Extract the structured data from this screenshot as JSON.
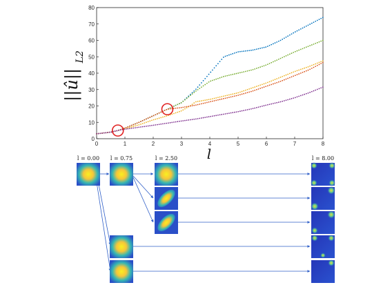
{
  "chart_data": {
    "type": "scatter",
    "xlabel": "l",
    "ylabel": "||û||",
    "ylabel_sub": "L2",
    "xlim": [
      0,
      8
    ],
    "ylim": [
      0,
      80
    ],
    "xticks": [
      0,
      1,
      2,
      3,
      4,
      5,
      6,
      7,
      8
    ],
    "yticks": [
      0,
      10,
      20,
      30,
      40,
      50,
      60,
      70,
      80
    ],
    "grid": false,
    "series": [
      {
        "color": "#0072BD",
        "points": [
          [
            0,
            3
          ],
          [
            0.5,
            4
          ],
          [
            0.75,
            5
          ],
          [
            1,
            6.5
          ],
          [
            1.5,
            10
          ],
          [
            2,
            14
          ],
          [
            2.5,
            18
          ],
          [
            3,
            22
          ],
          [
            3.5,
            30
          ],
          [
            4,
            40
          ],
          [
            4.5,
            50
          ],
          [
            5,
            53
          ],
          [
            5.5,
            54
          ],
          [
            6,
            56
          ],
          [
            6.5,
            60
          ],
          [
            7,
            65
          ],
          [
            7.5,
            69.5
          ],
          [
            8,
            74
          ]
        ]
      },
      {
        "color": "#77AC30",
        "points": [
          [
            0,
            3
          ],
          [
            0.5,
            4
          ],
          [
            0.75,
            5
          ],
          [
            1,
            6.5
          ],
          [
            1.5,
            10
          ],
          [
            2,
            14
          ],
          [
            2.5,
            18
          ],
          [
            3,
            22
          ],
          [
            3.5,
            29
          ],
          [
            4,
            35
          ],
          [
            4.5,
            38
          ],
          [
            5,
            40
          ],
          [
            5.5,
            42
          ],
          [
            6,
            45
          ],
          [
            6.5,
            49
          ],
          [
            7,
            53
          ],
          [
            7.5,
            56.5
          ],
          [
            8,
            60
          ]
        ]
      },
      {
        "color": "#EDB120",
        "points": [
          [
            0,
            3
          ],
          [
            0.5,
            4
          ],
          [
            0.75,
            5
          ],
          [
            1,
            6
          ],
          [
            1.5,
            8.5
          ],
          [
            2,
            11.5
          ],
          [
            2.5,
            14
          ],
          [
            3,
            17
          ],
          [
            3.3,
            20
          ],
          [
            3.5,
            22.5
          ],
          [
            4,
            24
          ],
          [
            4.5,
            26
          ],
          [
            5,
            28
          ],
          [
            5.5,
            31
          ],
          [
            6,
            34
          ],
          [
            6.5,
            37.5
          ],
          [
            7,
            41
          ],
          [
            7.5,
            44
          ],
          [
            8,
            47.5
          ]
        ]
      },
      {
        "color": "#D95319",
        "points": [
          [
            0,
            3
          ],
          [
            0.5,
            4
          ],
          [
            0.75,
            5
          ],
          [
            1,
            6.5
          ],
          [
            1.5,
            10
          ],
          [
            2,
            14
          ],
          [
            2.5,
            18
          ],
          [
            3,
            19
          ],
          [
            3.5,
            20.5
          ],
          [
            4,
            22.5
          ],
          [
            4.5,
            24.5
          ],
          [
            5,
            26.5
          ],
          [
            5.5,
            29
          ],
          [
            6,
            32
          ],
          [
            6.5,
            35
          ],
          [
            7,
            38.5
          ],
          [
            7.5,
            42
          ],
          [
            8,
            46.5
          ]
        ]
      },
      {
        "color": "#7E2F8E",
        "points": [
          [
            0,
            3
          ],
          [
            0.5,
            4
          ],
          [
            0.75,
            5
          ],
          [
            1,
            5.8
          ],
          [
            1.5,
            7
          ],
          [
            2,
            8.2
          ],
          [
            2.5,
            9.5
          ],
          [
            3,
            10.8
          ],
          [
            3.5,
            12
          ],
          [
            4,
            13.5
          ],
          [
            4.5,
            15
          ],
          [
            5,
            16.5
          ],
          [
            5.5,
            18.3
          ],
          [
            6,
            20.5
          ],
          [
            6.5,
            22.5
          ],
          [
            7,
            25
          ],
          [
            7.5,
            28
          ],
          [
            8,
            31.5
          ]
        ]
      }
    ],
    "annotations": [
      {
        "type": "circle",
        "x": 0.75,
        "y": 5,
        "color": "#E02020"
      },
      {
        "type": "circle",
        "x": 2.5,
        "y": 18,
        "color": "#E02020"
      }
    ]
  },
  "thumbnails": {
    "labels": [
      "l = 0.00",
      "l = 0.75",
      "l = 2.50",
      "l = 8.00"
    ]
  }
}
